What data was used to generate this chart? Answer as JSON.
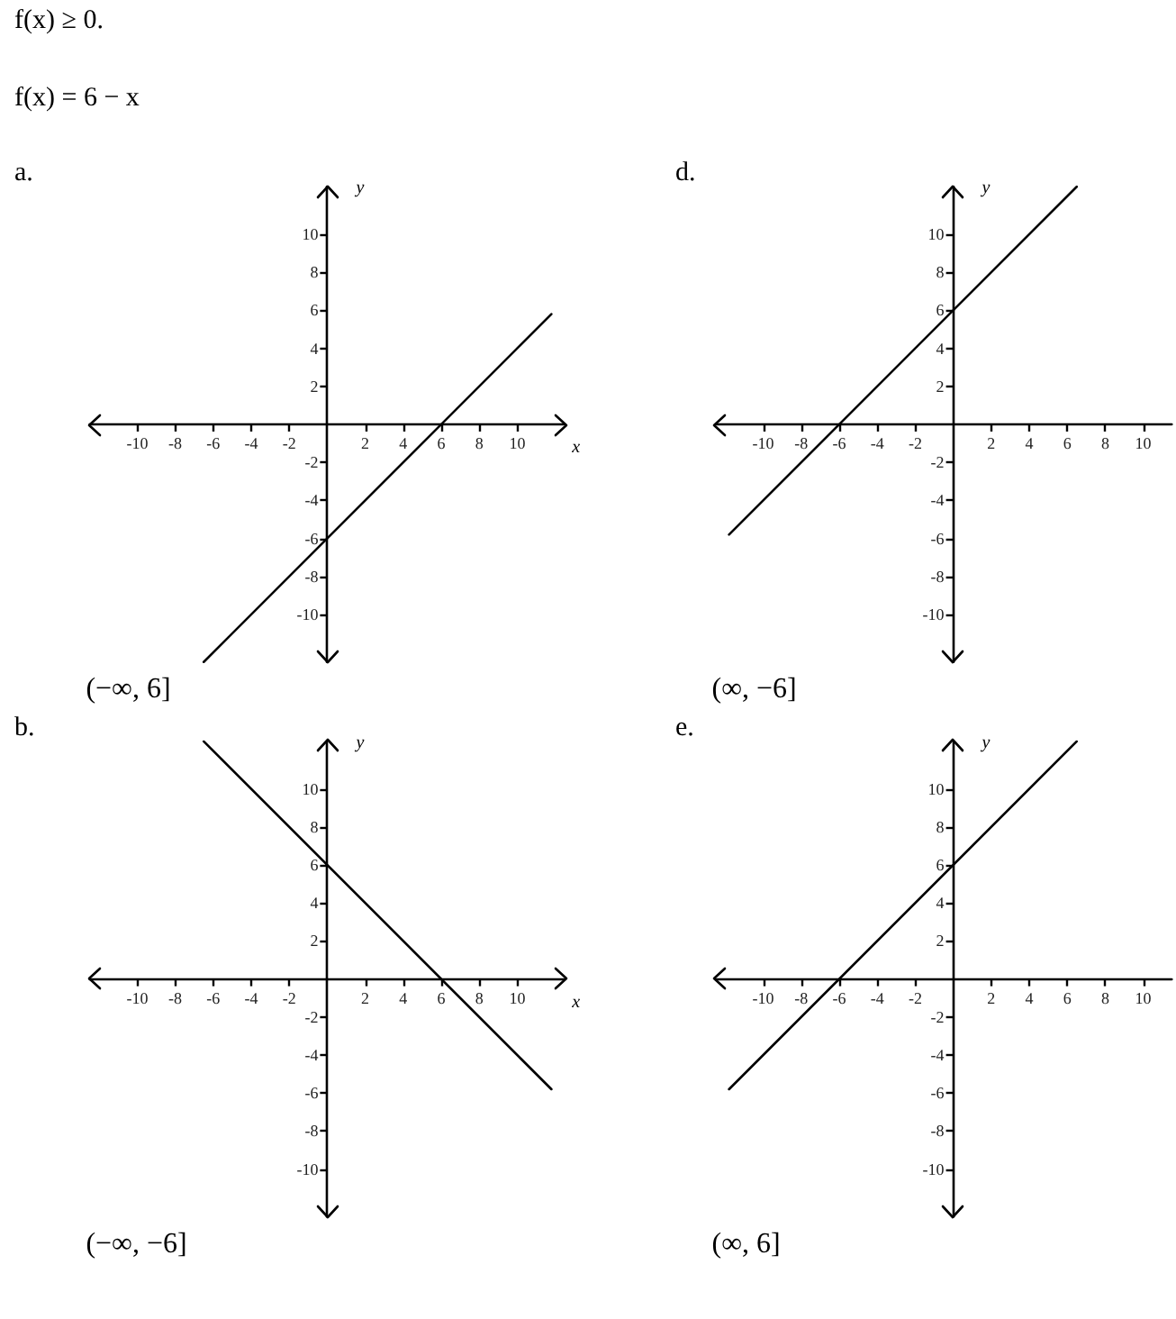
{
  "chart_data": [
    {
      "type": "line",
      "title": "a.",
      "xlabel": "x",
      "ylabel": "y",
      "annotations": [
        "f(x) ≥ 0.",
        "f(x) = 6 − x",
        "(−∞, 6]"
      ],
      "x": [
        -6.5,
        11.8
      ],
      "values": [
        -12.5,
        5.8
      ],
      "color": "#000000",
      "xlim": [
        -12.5,
        12.5
      ],
      "ylim": [
        -12.5,
        12.5
      ],
      "xticks": [
        -10,
        -8,
        -6,
        -4,
        -2,
        2,
        4,
        6,
        8,
        10
      ],
      "yticks": [
        -10,
        -8,
        -6,
        -4,
        -2,
        2,
        4,
        6,
        8,
        10
      ]
    },
    {
      "type": "line",
      "title": "d.",
      "ylabel": "y",
      "annotations": [
        "(∞, −6]"
      ],
      "x": [
        -11.8,
        6.5
      ],
      "values": [
        -5.8,
        12.5
      ],
      "color": "#000000",
      "xlim": [
        -12.5,
        11.5
      ],
      "ylim": [
        -12.5,
        12.5
      ],
      "xticks": [
        -10,
        -8,
        -6,
        -4,
        -2,
        2,
        4,
        6,
        8,
        10
      ],
      "yticks": [
        -10,
        -8,
        -6,
        -4,
        -2,
        2,
        4,
        6,
        8,
        10
      ]
    },
    {
      "type": "line",
      "title": "b.",
      "xlabel": "x",
      "ylabel": "y",
      "annotations": [
        "(−∞, −6]"
      ],
      "x": [
        -6.5,
        11.8
      ],
      "values": [
        12.5,
        -5.8
      ],
      "color": "#000000",
      "xlim": [
        -12.5,
        12.5
      ],
      "ylim": [
        -12.5,
        12.5
      ],
      "xticks": [
        -10,
        -8,
        -6,
        -4,
        -2,
        2,
        4,
        6,
        8,
        10
      ],
      "yticks": [
        -10,
        -8,
        -6,
        -4,
        -2,
        2,
        4,
        6,
        8,
        10
      ]
    },
    {
      "type": "line",
      "title": "e.",
      "ylabel": "y",
      "annotations": [
        "(∞, 6]"
      ],
      "x": [
        -11.8,
        6.5
      ],
      "values": [
        -5.8,
        12.5
      ],
      "color": "#000000",
      "xlim": [
        -12.5,
        11.5
      ],
      "ylim": [
        -12.5,
        12.5
      ],
      "xticks": [
        -10,
        -8,
        -6,
        -4,
        -2,
        2,
        4,
        6,
        8,
        10
      ],
      "yticks": [
        -10,
        -8,
        -6,
        -4,
        -2,
        2,
        4,
        6,
        8,
        10
      ]
    }
  ]
}
